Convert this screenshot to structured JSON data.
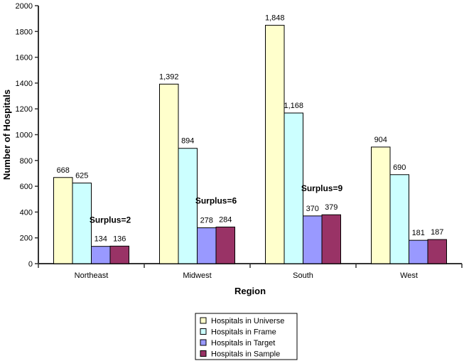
{
  "chart_data": {
    "type": "bar",
    "title": "",
    "xlabel": "Region",
    "ylabel": "Number of Hospitals",
    "ylim": [
      0,
      2000
    ],
    "yticks": [
      0,
      200,
      400,
      600,
      800,
      1000,
      1200,
      1400,
      1600,
      1800,
      2000
    ],
    "categories": [
      "Northeast",
      "Midwest",
      "South",
      "West"
    ],
    "series": [
      {
        "name": "Hospitals in Universe",
        "color": "#FFFFCC",
        "values": [
          668,
          1392,
          1848,
          904
        ],
        "labels": [
          "668",
          "1,392",
          "1,848",
          "904"
        ]
      },
      {
        "name": "Hospitals in Frame",
        "color": "#CCFFFF",
        "values": [
          625,
          894,
          1168,
          690
        ],
        "labels": [
          "625",
          "894",
          "1,168",
          "690"
        ]
      },
      {
        "name": "Hospitals in Target",
        "color": "#9999FF",
        "values": [
          134,
          278,
          370,
          181
        ],
        "labels": [
          "134",
          "278",
          "370",
          "181"
        ]
      },
      {
        "name": "Hospitals in Sample",
        "color": "#993366",
        "values": [
          136,
          284,
          379,
          187
        ],
        "labels": [
          "136",
          "284",
          "379",
          "187"
        ]
      }
    ],
    "annotations": [
      "Surplus=2",
      "Surplus=6",
      "Surplus=9"
    ],
    "grid": false,
    "legend_position": "bottom"
  }
}
